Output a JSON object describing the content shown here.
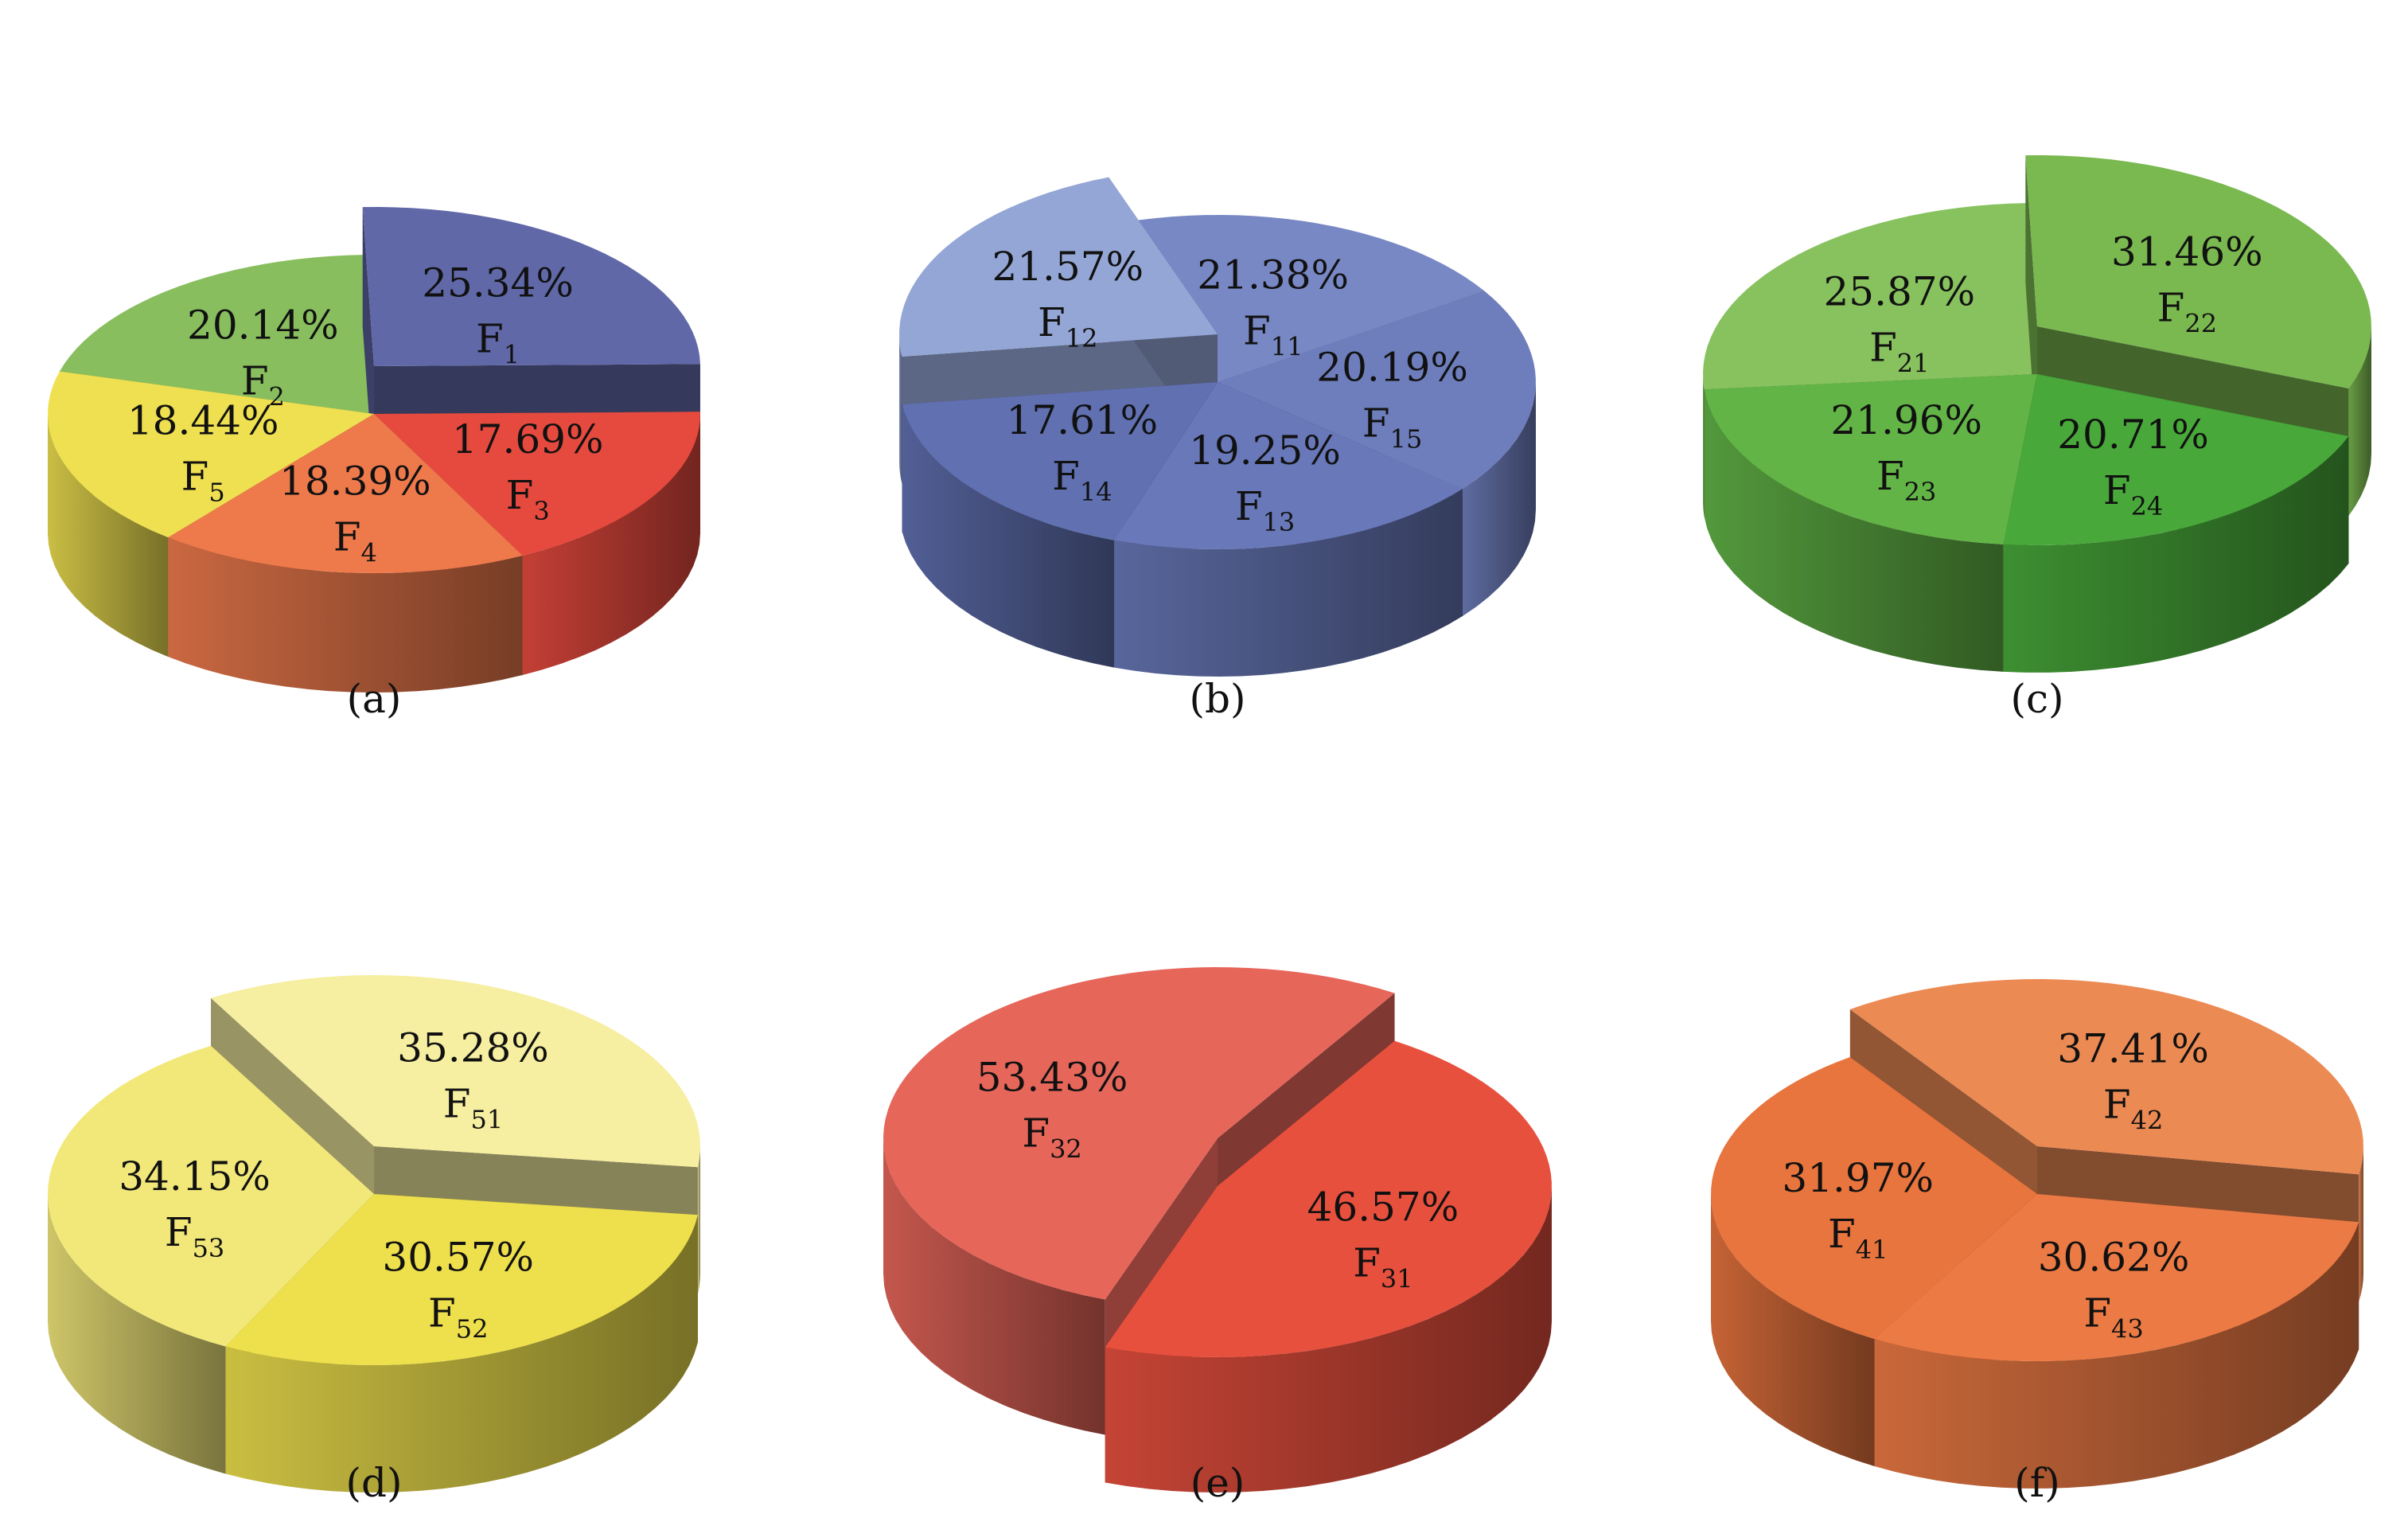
{
  "chart_data": [
    {
      "type": "pie",
      "caption": "(a)",
      "slices": [
        {
          "label": "F",
          "sub": "1",
          "value": 25.34,
          "display": "25.34%",
          "color": "#6068A8",
          "exploded": true
        },
        {
          "label": "F",
          "sub": "3",
          "value": 17.69,
          "display": "17.69%",
          "color": "#E64A3E",
          "exploded": false
        },
        {
          "label": "F",
          "sub": "4",
          "value": 18.39,
          "display": "18.39%",
          "color": "#EE7A4C",
          "exploded": false
        },
        {
          "label": "F",
          "sub": "5",
          "value": 18.44,
          "display": "18.44%",
          "color": "#EEE050",
          "exploded": false
        },
        {
          "label": "F",
          "sub": "2",
          "value": 20.14,
          "display": "20.14%",
          "color": "#88BE5E",
          "exploded": false
        }
      ]
    },
    {
      "type": "pie",
      "caption": "(b)",
      "slices": [
        {
          "label": "F",
          "sub": "11",
          "value": 21.38,
          "display": "21.38%",
          "color": "#7888C4",
          "exploded": false
        },
        {
          "label": "F",
          "sub": "15",
          "value": 20.19,
          "display": "20.19%",
          "color": "#6E7EBC",
          "exploded": false
        },
        {
          "label": "F",
          "sub": "13",
          "value": 19.25,
          "display": "19.25%",
          "color": "#6878B8",
          "exploded": false
        },
        {
          "label": "F",
          "sub": "14",
          "value": 17.61,
          "display": "17.61%",
          "color": "#6070B0",
          "exploded": false
        },
        {
          "label": "F",
          "sub": "12",
          "value": 21.57,
          "display": "21.57%",
          "color": "#94A6D6",
          "exploded": true
        }
      ]
    },
    {
      "type": "pie",
      "caption": "(c)",
      "slices": [
        {
          "label": "F",
          "sub": "22",
          "value": 31.46,
          "display": "31.46%",
          "color": "#7AB850",
          "exploded": true
        },
        {
          "label": "F",
          "sub": "24",
          "value": 20.71,
          "display": "20.71%",
          "color": "#48A83A",
          "exploded": false
        },
        {
          "label": "F",
          "sub": "23",
          "value": 21.96,
          "display": "21.96%",
          "color": "#62B446",
          "exploded": false
        },
        {
          "label": "F",
          "sub": "21",
          "value": 25.87,
          "display": "25.87%",
          "color": "#88C25E",
          "exploded": false
        }
      ]
    },
    {
      "type": "pie",
      "caption": "(d)",
      "slices": [
        {
          "label": "F",
          "sub": "51",
          "value": 35.28,
          "display": "35.28%",
          "color": "#F6EEA0",
          "exploded": true
        },
        {
          "label": "F",
          "sub": "52",
          "value": 30.57,
          "display": "30.57%",
          "color": "#EEE04C",
          "exploded": false
        },
        {
          "label": "F",
          "sub": "53",
          "value": 34.15,
          "display": "34.15%",
          "color": "#F2E87A",
          "exploded": false
        }
      ]
    },
    {
      "type": "pie",
      "caption": "(e)",
      "slices": [
        {
          "label": "F",
          "sub": "31",
          "value": 46.57,
          "display": "46.57%",
          "color": "#E8503E",
          "exploded": false
        },
        {
          "label": "F",
          "sub": "32",
          "value": 53.43,
          "display": "53.43%",
          "color": "#E6665A",
          "exploded": true
        }
      ]
    },
    {
      "type": "pie",
      "caption": "(f)",
      "slices": [
        {
          "label": "F",
          "sub": "42",
          "value": 37.41,
          "display": "37.41%",
          "color": "#EC8A54",
          "exploded": true
        },
        {
          "label": "F",
          "sub": "43",
          "value": 30.62,
          "display": "30.62%",
          "color": "#EC7A44",
          "exploded": false
        },
        {
          "label": "F",
          "sub": "41",
          "value": 31.97,
          "display": "31.97%",
          "color": "#E8743E",
          "exploded": false
        }
      ]
    }
  ]
}
